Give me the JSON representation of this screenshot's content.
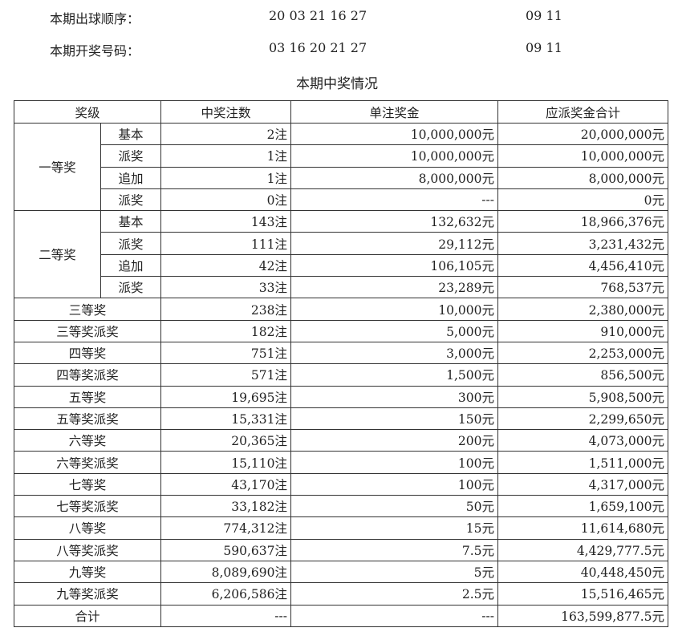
{
  "draw": {
    "order_label": "本期出球顺序：",
    "order_front": "20 03 21 16 27",
    "order_back": "09 11",
    "numbers_label": "本期开奖号码：",
    "numbers_front": "03 16 20 21 27",
    "numbers_back": "09 11"
  },
  "table": {
    "title": "本期中奖情况",
    "headers": [
      "奖级",
      "中奖注数",
      "单注奖金",
      "应派奖金合计"
    ],
    "group_rows": [
      {
        "group": "一等奖",
        "items": [
          {
            "sub": "基本",
            "count": "2注",
            "prize": "10,000,000元",
            "total": "20,000,000元"
          },
          {
            "sub": "派奖",
            "count": "1注",
            "prize": "10,000,000元",
            "total": "10,000,000元"
          },
          {
            "sub": "追加",
            "count": "1注",
            "prize": "8,000,000元",
            "total": "8,000,000元"
          },
          {
            "sub": "派奖",
            "count": "0注",
            "prize": "---",
            "total": "0元"
          }
        ]
      },
      {
        "group": "二等奖",
        "items": [
          {
            "sub": "基本",
            "count": "143注",
            "prize": "132,632元",
            "total": "18,966,376元"
          },
          {
            "sub": "派奖",
            "count": "111注",
            "prize": "29,112元",
            "total": "3,231,432元"
          },
          {
            "sub": "追加",
            "count": "42注",
            "prize": "106,105元",
            "total": "4,456,410元"
          },
          {
            "sub": "派奖",
            "count": "33注",
            "prize": "23,289元",
            "total": "768,537元"
          }
        ]
      }
    ],
    "rows": [
      {
        "level": "三等奖",
        "count": "238注",
        "prize": "10,000元",
        "total": "2,380,000元"
      },
      {
        "level": "三等奖派奖",
        "count": "182注",
        "prize": "5,000元",
        "total": "910,000元"
      },
      {
        "level": "四等奖",
        "count": "751注",
        "prize": "3,000元",
        "total": "2,253,000元"
      },
      {
        "level": "四等奖派奖",
        "count": "571注",
        "prize": "1,500元",
        "total": "856,500元"
      },
      {
        "level": "五等奖",
        "count": "19,695注",
        "prize": "300元",
        "total": "5,908,500元"
      },
      {
        "level": "五等奖派奖",
        "count": "15,331注",
        "prize": "150元",
        "total": "2,299,650元"
      },
      {
        "level": "六等奖",
        "count": "20,365注",
        "prize": "200元",
        "total": "4,073,000元"
      },
      {
        "level": "六等奖派奖",
        "count": "15,110注",
        "prize": "100元",
        "total": "1,511,000元"
      },
      {
        "level": "七等奖",
        "count": "43,170注",
        "prize": "100元",
        "total": "4,317,000元"
      },
      {
        "level": "七等奖派奖",
        "count": "33,182注",
        "prize": "50元",
        "total": "1,659,100元"
      },
      {
        "level": "八等奖",
        "count": "774,312注",
        "prize": "15元",
        "total": "11,614,680元"
      },
      {
        "level": "八等奖派奖",
        "count": "590,637注",
        "prize": "7.5元",
        "total": "4,429,777.5元"
      },
      {
        "level": "九等奖",
        "count": "8,089,690注",
        "prize": "5元",
        "total": "40,448,450元"
      },
      {
        "level": "九等奖派奖",
        "count": "6,206,586注",
        "prize": "2.5元",
        "total": "15,516,465元"
      },
      {
        "level": "合计",
        "count": "---",
        "prize": "---",
        "total": "163,599,877.5元"
      }
    ]
  }
}
